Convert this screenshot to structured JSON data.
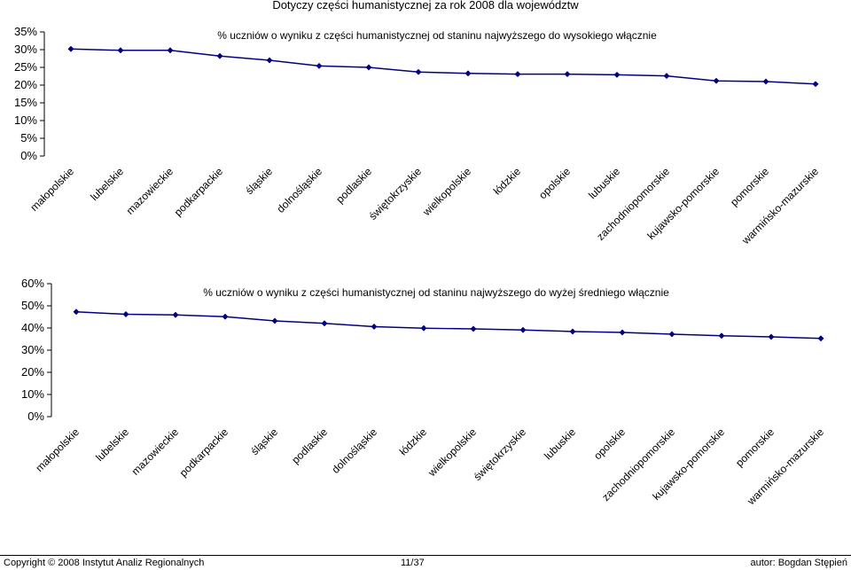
{
  "page_title": "Dotyczy części humanistycznej za rok 2008 dla województw",
  "footer": {
    "copyright": "Copyright © 2008 Instytut Analiz Regionalnych",
    "page": "11/37",
    "author": "autor: Bogdan Stępień"
  },
  "colors": {
    "line": "#000080",
    "marker": "#000080",
    "axis": "#000000"
  },
  "chart_data": [
    {
      "type": "line",
      "title": "% uczniów o wyniku z części humanistycznej od staninu najwyższego do wysokiego włącznie",
      "categories": [
        "małopolskie",
        "lubelskie",
        "mazowieckie",
        "podkarpackie",
        "śląskie",
        "dolnośląskie",
        "podlaskie",
        "świętokrzyskie",
        "wielkopolskie",
        "łódzkie",
        "opolskie",
        "lubuskie",
        "zachodniopomorskie",
        "kujawsko-pomorskie",
        "pomorskie",
        "warmińsko-mazurskie"
      ],
      "values": [
        30.2,
        29.8,
        29.8,
        28.2,
        27.0,
        25.4,
        25.0,
        23.7,
        23.3,
        23.1,
        23.1,
        22.9,
        22.6,
        21.2,
        21.0,
        20.3
      ],
      "ylim": [
        0,
        35
      ],
      "yticks": [
        "0%",
        "5%",
        "10%",
        "15%",
        "20%",
        "25%",
        "30%",
        "35%"
      ],
      "yticks_values": [
        0,
        5,
        10,
        15,
        20,
        25,
        30,
        35
      ],
      "grid": false,
      "legend": "none"
    },
    {
      "type": "line",
      "title": "% uczniów o wyniku z części humanistycznej od staninu najwyższego do wyżej średniego włącznie",
      "categories": [
        "małopolskie",
        "lubelskie",
        "mazowieckie",
        "podkarpackie",
        "śląskie",
        "podlaskie",
        "dolnośląskie",
        "łódzkie",
        "wielkopolskie",
        "świętokrzyskie",
        "lubuskie",
        "opolskie",
        "zachodniopomorskie",
        "kujawsko-pomorskie",
        "pomorskie",
        "warmińsko-mazurskie"
      ],
      "values": [
        47.3,
        46.2,
        45.9,
        45.1,
        43.2,
        42.1,
        40.6,
        39.9,
        39.6,
        39.1,
        38.4,
        38.0,
        37.2,
        36.5,
        36.0,
        35.3
      ],
      "ylim": [
        0,
        60
      ],
      "yticks": [
        "0%",
        "10%",
        "20%",
        "30%",
        "40%",
        "50%",
        "60%"
      ],
      "yticks_values": [
        0,
        10,
        20,
        30,
        40,
        50,
        60
      ],
      "grid": false,
      "legend": "none"
    }
  ]
}
